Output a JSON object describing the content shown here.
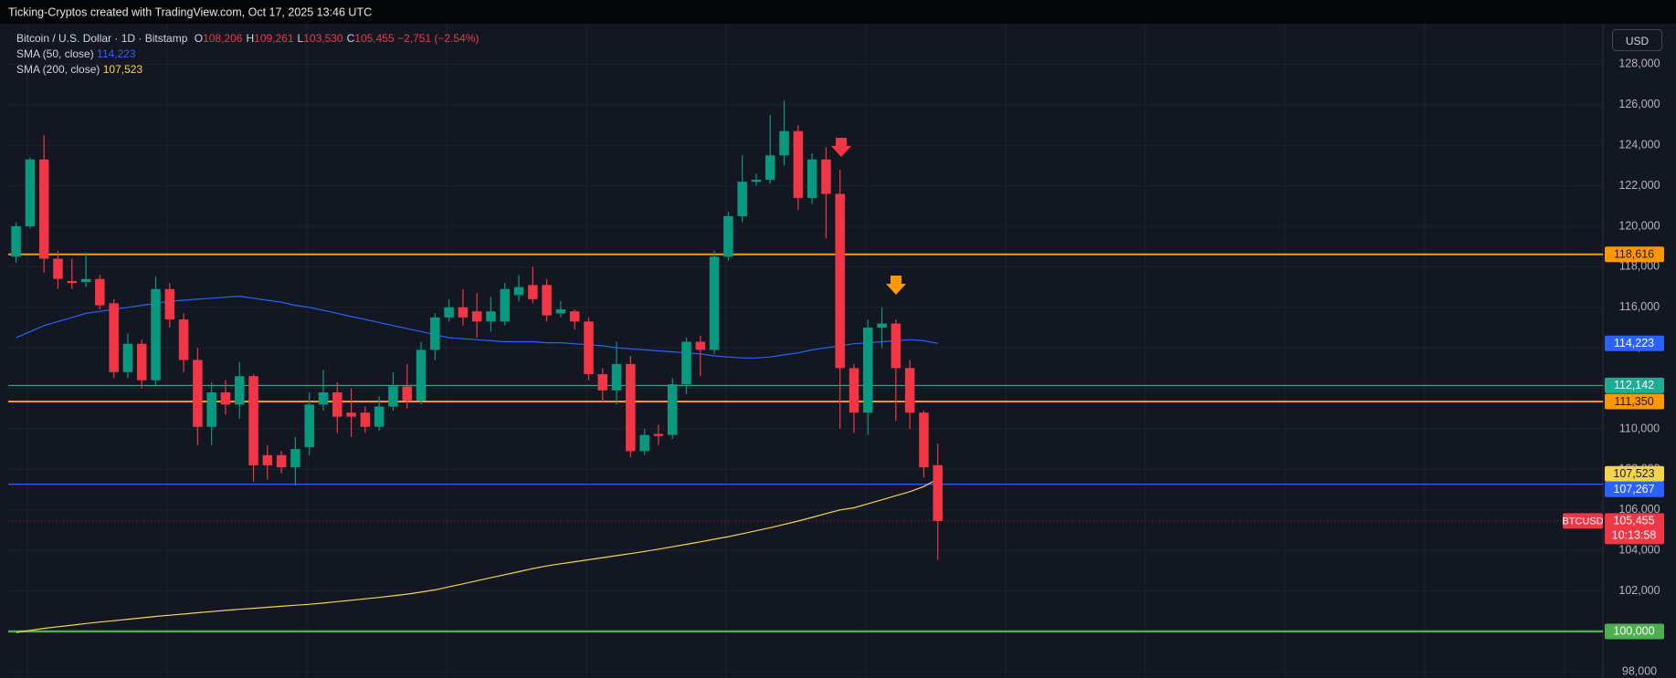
{
  "header": {
    "text": "Ticking-Cryptos created with TradingView.com, Oct 17, 2025 13:46 UTC"
  },
  "currency_button": "USD",
  "chart_data": {
    "type": "candlestick",
    "legend": {
      "symbol": "Bitcoin / U.S. Dollar · 1D · Bitstamp",
      "fields": [
        {
          "key": "O",
          "value": 108206,
          "label": "108,206"
        },
        {
          "key": "H",
          "value": 109261,
          "label": "109,261"
        },
        {
          "key": "L",
          "value": 103530,
          "label": "103,530"
        },
        {
          "key": "C",
          "value": 105455,
          "label": "105,455"
        }
      ],
      "change": {
        "value": -2751,
        "label": "−2,751"
      },
      "change_pct": {
        "value": -2.54,
        "label": "(−2.54%)"
      }
    },
    "up_color": "#089981",
    "down_color": "#f23645",
    "open": [
      118500,
      120000,
      123300,
      118400,
      117300,
      117250,
      117400,
      116200,
      112800,
      114200,
      112400,
      116900,
      115400,
      113400,
      110100,
      111800,
      111200,
      112600,
      108700,
      108700,
      108100,
      109100,
      111200,
      111800,
      110800,
      110800,
      110100,
      111100,
      112100,
      111400,
      113900,
      115500,
      116000,
      115800,
      115300,
      115300,
      116600,
      117100,
      117100,
      115700,
      115800,
      115300,
      112700,
      111900,
      113200,
      108900,
      109750,
      109700,
      112200,
      114300,
      113900,
      118500,
      120500,
      122200,
      122300,
      123500,
      124700,
      121400,
      123300,
      121600,
      113000,
      110800,
      115000,
      115200,
      113000,
      110800,
      108206
    ],
    "high": [
      120200,
      123400,
      124500,
      118800,
      118400,
      118700,
      117600,
      116400,
      114700,
      114400,
      117500,
      117200,
      115700,
      114000,
      112300,
      112400,
      113300,
      112700,
      109200,
      108900,
      109600,
      111800,
      112900,
      112300,
      112000,
      111100,
      111600,
      112800,
      113200,
      114300,
      115700,
      116400,
      116900,
      116700,
      116500,
      117200,
      117600,
      118000,
      117400,
      116300,
      115900,
      115500,
      113000,
      114300,
      113600,
      110000,
      110200,
      112500,
      114500,
      114600,
      118800,
      120700,
      123500,
      122600,
      125500,
      126200,
      125000,
      123600,
      123900,
      122800,
      113200,
      115400,
      116000,
      115400,
      113400,
      110900,
      109261
    ],
    "low": [
      118200,
      119900,
      117700,
      116900,
      116900,
      117000,
      115900,
      112500,
      112500,
      112000,
      112100,
      115000,
      112800,
      109200,
      109200,
      110700,
      110500,
      107400,
      107500,
      107800,
      107200,
      108700,
      110900,
      109800,
      109600,
      109800,
      109900,
      110900,
      111000,
      111200,
      113400,
      115300,
      115100,
      114500,
      114800,
      115100,
      116300,
      116200,
      115300,
      115500,
      114900,
      112400,
      111300,
      111200,
      108600,
      108700,
      109200,
      109500,
      111700,
      112600,
      113700,
      118300,
      120200,
      122000,
      122100,
      123000,
      120800,
      121100,
      119400,
      110000,
      109800,
      109700,
      114000,
      110400,
      110000,
      107600,
      103530
    ],
    "close": [
      120000,
      123300,
      118400,
      117400,
      117200,
      117400,
      116100,
      112800,
      114200,
      112400,
      116900,
      115400,
      113400,
      110100,
      111800,
      111200,
      112600,
      108200,
      108200,
      108100,
      109000,
      111200,
      111800,
      110600,
      110600,
      110100,
      111100,
      112100,
      111400,
      113900,
      115500,
      116000,
      115500,
      115300,
      115800,
      116900,
      117000,
      116400,
      115600,
      115900,
      115300,
      112700,
      111900,
      113200,
      108900,
      109700,
      109650,
      112200,
      114300,
      113900,
      118500,
      120500,
      122200,
      122300,
      123500,
      124700,
      121400,
      123300,
      121600,
      113000,
      110800,
      115000,
      115200,
      113000,
      110800,
      108100,
      105455
    ],
    "series": [
      {
        "name": "SMA (50, close)",
        "color": "#2962ff",
        "last": {
          "value": 114223,
          "label": "114,223"
        },
        "values": [
          114500,
          114800,
          115100,
          115300,
          115500,
          115700,
          115800,
          115900,
          116000,
          116100,
          116200,
          116300,
          116350,
          116400,
          116450,
          116500,
          116550,
          116450,
          116350,
          116250,
          116100,
          116000,
          115850,
          115700,
          115550,
          115400,
          115250,
          115100,
          114950,
          114800,
          114650,
          114500,
          114450,
          114400,
          114350,
          114300,
          114300,
          114300,
          114250,
          114250,
          114200,
          114150,
          114100,
          114000,
          113950,
          113900,
          113850,
          113800,
          113750,
          113700,
          113600,
          113550,
          113500,
          113500,
          113550,
          113650,
          113750,
          113900,
          114000,
          114100,
          114200,
          114250,
          114300,
          114350,
          114400,
          114350,
          114223
        ]
      },
      {
        "name": "SMA (200, close)",
        "color": "#f5d547",
        "last": {
          "value": 107523,
          "label": "107,523"
        },
        "values": [
          99950,
          100050,
          100150,
          100230,
          100310,
          100390,
          100460,
          100530,
          100600,
          100670,
          100740,
          100800,
          100860,
          100920,
          100980,
          101040,
          101090,
          101140,
          101190,
          101240,
          101290,
          101340,
          101400,
          101470,
          101540,
          101610,
          101680,
          101760,
          101840,
          101940,
          102050,
          102200,
          102350,
          102500,
          102650,
          102800,
          102950,
          103100,
          103230,
          103340,
          103440,
          103540,
          103640,
          103740,
          103840,
          103950,
          104060,
          104180,
          104300,
          104420,
          104550,
          104680,
          104820,
          104970,
          105120,
          105280,
          105450,
          105630,
          105820,
          106000,
          106100,
          106300,
          106500,
          106700,
          106900,
          107150,
          107523
        ]
      }
    ],
    "levels": [
      {
        "value": 118616,
        "label": "118,616",
        "color": "#ff9800",
        "width": 2
      },
      {
        "value": 112142,
        "label": "112,142",
        "color": "#22ab94",
        "width": 1.2
      },
      {
        "value": 111350,
        "label": "111,350",
        "color": "#ff9800",
        "width": 2
      },
      {
        "value": 107267,
        "label": "107,267",
        "color": "#2962ff",
        "width": 1.2
      },
      {
        "value": 100000,
        "label": "100,000",
        "color": "#4caf50",
        "width": 2.4
      }
    ],
    "current": {
      "symbol": "BTCUSD",
      "price": {
        "value": 105455,
        "label": "105,455"
      },
      "countdown": "10:13:58"
    },
    "ylim": [
      97700,
      130000
    ],
    "yticks": [
      {
        "value": 98000,
        "label": "98,000"
      },
      {
        "value": 100000,
        "label": "100,000"
      },
      {
        "value": 102000,
        "label": "102,000"
      },
      {
        "value": 104000,
        "label": "104,000"
      },
      {
        "value": 106000,
        "label": "106,000"
      },
      {
        "value": 108000,
        "label": "108,000"
      },
      {
        "value": 110000,
        "label": "110,000"
      },
      {
        "value": 112000,
        "label": "112,000"
      },
      {
        "value": 114000,
        "label": "114,000"
      },
      {
        "value": 116000,
        "label": "116,000"
      },
      {
        "value": 118000,
        "label": "118,000"
      },
      {
        "value": 120000,
        "label": "120,000"
      },
      {
        "value": 122000,
        "label": "122,000"
      },
      {
        "value": 124000,
        "label": "124,000"
      },
      {
        "value": 126000,
        "label": "126,000"
      },
      {
        "value": 128000,
        "label": "128,000"
      }
    ],
    "grid": true
  }
}
